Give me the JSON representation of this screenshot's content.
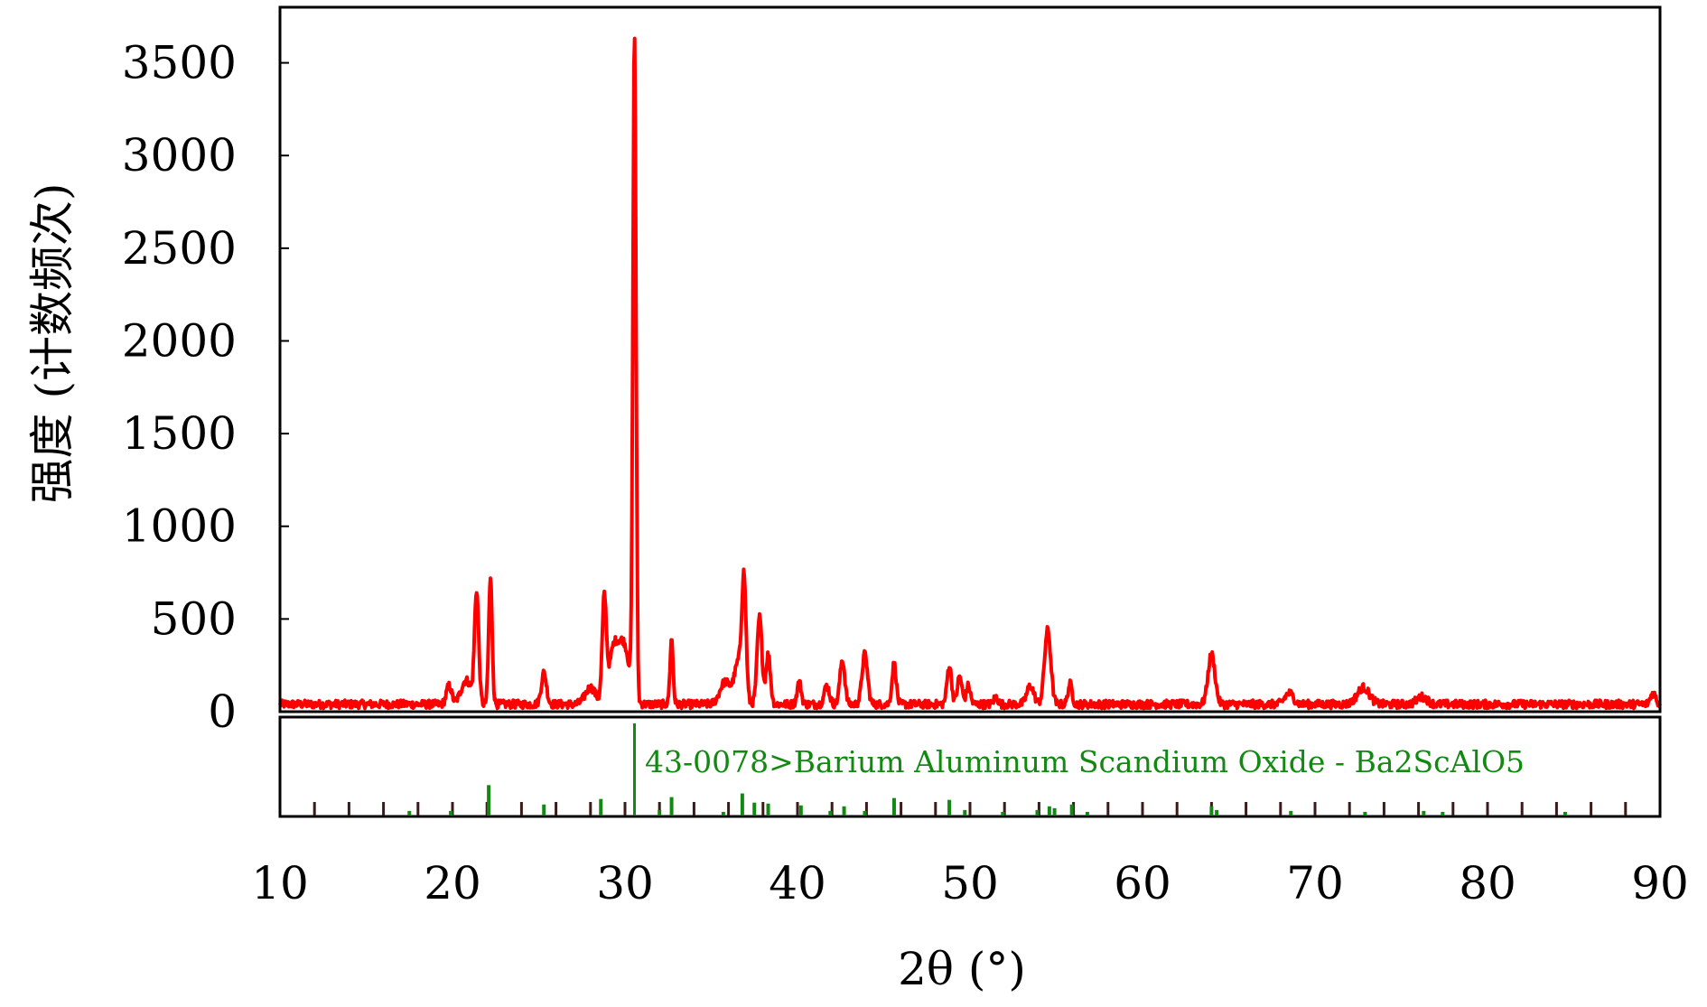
{
  "chart_data": {
    "type": "line",
    "xlabel": "2θ (°)",
    "ylabel": "强度 (计数频次)",
    "xlim": [
      10,
      90
    ],
    "ylim": [
      0,
      3800
    ],
    "x_ticks": [
      10,
      20,
      30,
      40,
      50,
      60,
      70,
      80,
      90
    ],
    "y_ticks": [
      0,
      500,
      1000,
      1500,
      2000,
      2500,
      3000,
      3500
    ],
    "grid": false,
    "colors": {
      "pattern": "#ff0000",
      "reference": "#128a12",
      "frame": "#000000"
    },
    "series": [
      {
        "baseline": 40,
        "noise": 22,
        "peaks": [
          {
            "x": 19.8,
            "y": 100,
            "w": 0.15
          },
          {
            "x": 20.8,
            "y": 130,
            "w": 0.3
          },
          {
            "x": 21.4,
            "y": 600,
            "w": 0.12
          },
          {
            "x": 22.2,
            "y": 680,
            "w": 0.1
          },
          {
            "x": 25.3,
            "y": 170,
            "w": 0.15
          },
          {
            "x": 28.0,
            "y": 90,
            "w": 0.3
          },
          {
            "x": 28.8,
            "y": 560,
            "w": 0.12
          },
          {
            "x": 29.3,
            "y": 240,
            "w": 0.25
          },
          {
            "x": 29.9,
            "y": 330,
            "w": 0.35
          },
          {
            "x": 30.55,
            "y": 3560,
            "w": 0.09
          },
          {
            "x": 32.7,
            "y": 350,
            "w": 0.09
          },
          {
            "x": 35.8,
            "y": 120,
            "w": 0.3
          },
          {
            "x": 36.6,
            "y": 230,
            "w": 0.25
          },
          {
            "x": 36.9,
            "y": 600,
            "w": 0.12
          },
          {
            "x": 37.8,
            "y": 470,
            "w": 0.14
          },
          {
            "x": 38.3,
            "y": 270,
            "w": 0.13
          },
          {
            "x": 40.1,
            "y": 120,
            "w": 0.12
          },
          {
            "x": 41.7,
            "y": 100,
            "w": 0.15
          },
          {
            "x": 42.6,
            "y": 240,
            "w": 0.14
          },
          {
            "x": 43.9,
            "y": 270,
            "w": 0.16
          },
          {
            "x": 45.6,
            "y": 220,
            "w": 0.12
          },
          {
            "x": 48.8,
            "y": 210,
            "w": 0.13
          },
          {
            "x": 49.4,
            "y": 150,
            "w": 0.13
          },
          {
            "x": 49.9,
            "y": 100,
            "w": 0.12
          },
          {
            "x": 51.5,
            "y": 40,
            "w": 0.12
          },
          {
            "x": 53.5,
            "y": 100,
            "w": 0.2
          },
          {
            "x": 54.5,
            "y": 400,
            "w": 0.18
          },
          {
            "x": 55.8,
            "y": 110,
            "w": 0.12
          },
          {
            "x": 64.0,
            "y": 270,
            "w": 0.2
          },
          {
            "x": 68.5,
            "y": 60,
            "w": 0.25
          },
          {
            "x": 72.8,
            "y": 90,
            "w": 0.35
          },
          {
            "x": 76.2,
            "y": 40,
            "w": 0.3
          },
          {
            "x": 89.6,
            "y": 60,
            "w": 0.15
          }
        ]
      }
    ],
    "reference": {
      "label": "43-0078>Barium Aluminum Scandium Oxide - Ba2ScAlO5",
      "sticks": [
        {
          "x": 17.5,
          "i": 0.05
        },
        {
          "x": 19.9,
          "i": 0.05
        },
        {
          "x": 22.1,
          "i": 0.33
        },
        {
          "x": 25.3,
          "i": 0.12
        },
        {
          "x": 28.6,
          "i": 0.18
        },
        {
          "x": 30.55,
          "i": 1.0
        },
        {
          "x": 32.0,
          "i": 0.06
        },
        {
          "x": 32.7,
          "i": 0.2
        },
        {
          "x": 35.7,
          "i": 0.04
        },
        {
          "x": 36.8,
          "i": 0.24
        },
        {
          "x": 37.5,
          "i": 0.14
        },
        {
          "x": 38.3,
          "i": 0.13
        },
        {
          "x": 40.2,
          "i": 0.11
        },
        {
          "x": 41.9,
          "i": 0.05
        },
        {
          "x": 42.7,
          "i": 0.1
        },
        {
          "x": 43.9,
          "i": 0.05
        },
        {
          "x": 45.6,
          "i": 0.19
        },
        {
          "x": 48.8,
          "i": 0.17
        },
        {
          "x": 49.7,
          "i": 0.06
        },
        {
          "x": 51.9,
          "i": 0.04
        },
        {
          "x": 53.9,
          "i": 0.06
        },
        {
          "x": 54.6,
          "i": 0.1
        },
        {
          "x": 54.9,
          "i": 0.08
        },
        {
          "x": 55.9,
          "i": 0.12
        },
        {
          "x": 56.8,
          "i": 0.04
        },
        {
          "x": 64.0,
          "i": 0.1
        },
        {
          "x": 64.3,
          "i": 0.06
        },
        {
          "x": 68.6,
          "i": 0.05
        },
        {
          "x": 72.9,
          "i": 0.04
        },
        {
          "x": 76.3,
          "i": 0.05
        },
        {
          "x": 77.4,
          "i": 0.04
        },
        {
          "x": 84.5,
          "i": 0.04
        }
      ]
    }
  }
}
